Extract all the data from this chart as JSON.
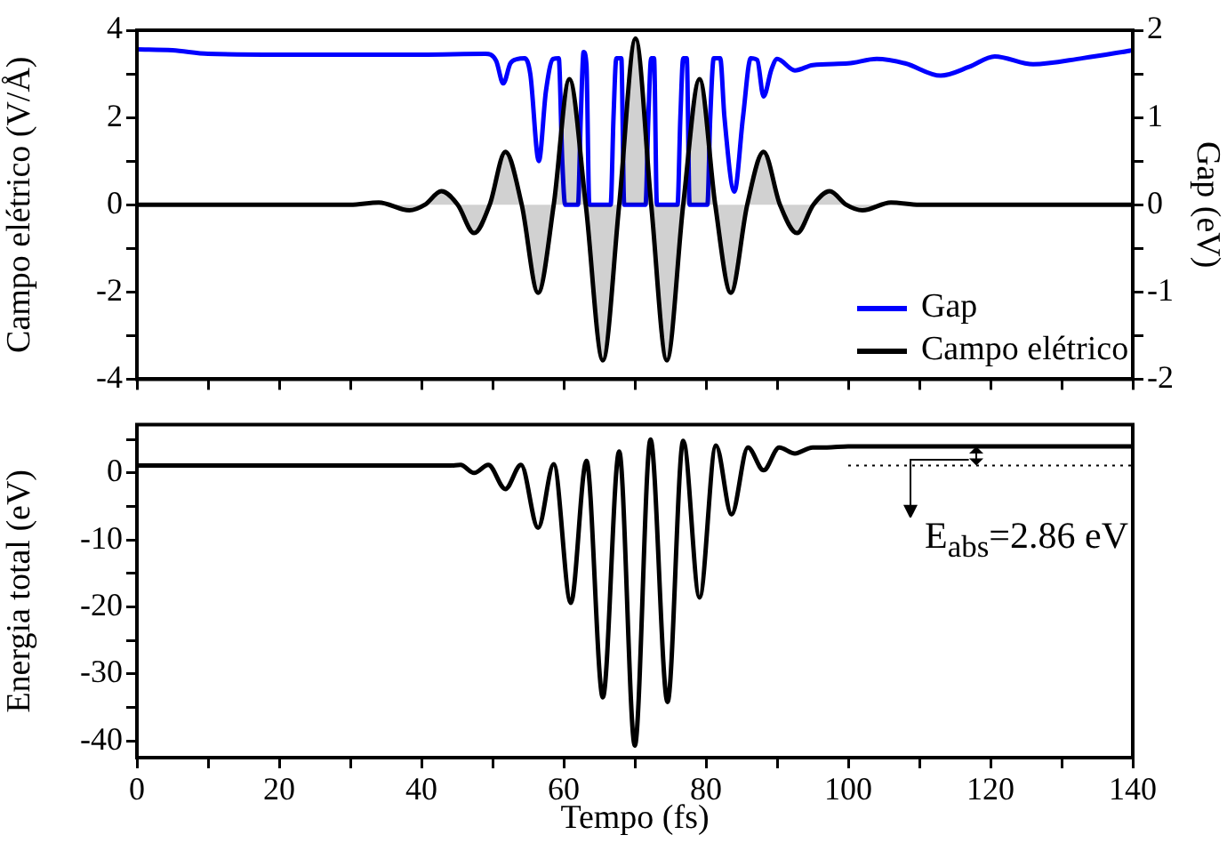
{
  "chart_data": [
    {
      "type": "line",
      "xlim": [
        0,
        140
      ],
      "xticks": [
        0,
        10,
        20,
        30,
        40,
        50,
        60,
        70,
        80,
        90,
        100,
        110,
        120,
        130,
        140
      ],
      "ylim": [
        -4,
        4
      ],
      "yticks": [
        -4,
        {
          "value": -3,
          "label": null
        },
        -2,
        {
          "value": -1,
          "label": null
        },
        0,
        {
          "value": 1,
          "label": null
        },
        2,
        {
          "value": 3,
          "label": null
        },
        4
      ],
      "y2lim": [
        -2,
        2
      ],
      "y2ticks": [
        -2,
        {
          "value": -1.5,
          "label": null
        },
        -1,
        {
          "value": -0.5,
          "label": null
        },
        0,
        {
          "value": 0.5,
          "label": null
        },
        1,
        {
          "value": 1.5,
          "label": null
        },
        2
      ],
      "ylabel": "Campo elétrico (V/Å)",
      "y2label": "Gap (eV)",
      "tick_labels": "y",
      "legend": "bottom right",
      "marker": "none",
      "series": [
        {
          "name": "Gap",
          "color": "#0000ff",
          "axis": "y2",
          "x": [
            0,
            5,
            10,
            20,
            30,
            40,
            49,
            50.5,
            51.5,
            52.5,
            53.5,
            54.5,
            55.3,
            56.5,
            57.5,
            58.5,
            59.3,
            59.8,
            60.2,
            62,
            62.4,
            62.8,
            63.2,
            63.6,
            66.6,
            67,
            67.4,
            68.1,
            68.5,
            71.5,
            71.9,
            72.3,
            72.7,
            73.1,
            76,
            76.4,
            76.8,
            77.3,
            77.7,
            80.2,
            80.6,
            81.1,
            82,
            82.6,
            84,
            85.2,
            86.3,
            87.2,
            88.1,
            89.2,
            90,
            92.5,
            95,
            100,
            104,
            108,
            113,
            117,
            120.6,
            126,
            133,
            140
          ],
          "values": [
            1.78,
            1.77,
            1.73,
            1.72,
            1.72,
            1.72,
            1.73,
            1.65,
            1.39,
            1.62,
            1.67,
            1.68,
            1.5,
            0.5,
            1.3,
            1.67,
            1.68,
            0.5,
            0,
            0,
            1,
            1.75,
            1.6,
            0,
            0,
            1,
            1.68,
            1.68,
            0,
            0,
            1,
            1.68,
            1.68,
            0,
            0,
            1,
            1.68,
            1.68,
            0,
            0,
            1,
            1.68,
            1.68,
            1,
            0.15,
            1,
            1.68,
            1.66,
            1.24,
            1.55,
            1.67,
            1.54,
            1.6,
            1.62,
            1.67,
            1.62,
            1.48,
            1.58,
            1.7,
            1.61,
            1.68,
            1.77
          ]
        },
        {
          "name": "Campo elétrico",
          "type": "area",
          "color": "#000000",
          "x": [
            0,
            30,
            34,
            38.3,
            40.5,
            42.8,
            45.1,
            47.4,
            49.6,
            51.8,
            54.1,
            56.4,
            58.6,
            60.8,
            63.1,
            65.5,
            67.8,
            70.1,
            72.3,
            74.5,
            76.8,
            79.1,
            81.3,
            83.5,
            85.8,
            88.1,
            90.4,
            92.8,
            95.1,
            97.4,
            99.7,
            102,
            106,
            110,
            140
          ],
          "values": [
            0,
            0,
            0.05,
            -0.13,
            0,
            0.31,
            0,
            -0.65,
            0,
            1.21,
            0,
            -2.02,
            0,
            2.88,
            0,
            -3.57,
            0,
            3.81,
            0,
            -3.57,
            0,
            2.88,
            0,
            -2.02,
            0,
            1.21,
            0,
            -0.65,
            0,
            0.31,
            0,
            -0.13,
            0.05,
            0,
            0
          ]
        }
      ]
    },
    {
      "type": "line",
      "xlim": [
        0,
        140
      ],
      "xticks": [
        0,
        {
          "value": 10,
          "label": null
        },
        20,
        {
          "value": 30,
          "label": null
        },
        40,
        {
          "value": 50,
          "label": null
        },
        60,
        {
          "value": 70,
          "label": null
        },
        80,
        {
          "value": 90,
          "label": null
        },
        100,
        {
          "value": 110,
          "label": null
        },
        120,
        {
          "value": 130,
          "label": null
        },
        140
      ],
      "ylim": [
        -42.5,
        7.2
      ],
      "yticks": [
        -40,
        {
          "value": -35,
          "label": null
        },
        -30,
        {
          "value": -25,
          "label": null
        },
        -20,
        {
          "value": -15,
          "label": null
        },
        -10,
        {
          "value": -5,
          "label": null
        },
        0,
        {
          "value": 5,
          "label": null
        }
      ],
      "xlabel": "Tempo (fs)",
      "ylabel": "Energia total (eV)",
      "marker": "none",
      "annotations": [
        {
          "text": "E$_{abs}$=2.86 eV",
          "x": 118,
          "y": 2.5
        }
      ],
      "series": [
        {
          "color": "#000000",
          "x": [
            0,
            40,
            44,
            45.5,
            47.4,
            49.4,
            51.8,
            54,
            56.4,
            58.6,
            61,
            63.2,
            65.5,
            67.8,
            70,
            72.2,
            74.6,
            76.8,
            79.1,
            81.4,
            83.6,
            85.9,
            88.1,
            90.3,
            92.5,
            95,
            97,
            100,
            140
          ],
          "values": [
            1.1,
            1.1,
            1.1,
            1.2,
            0,
            1.2,
            -2.4,
            1.2,
            -8.2,
            1.3,
            -19.4,
            1.8,
            -33.5,
            3.2,
            -40.7,
            5,
            -34.2,
            4.8,
            -18.6,
            4.1,
            -6.2,
            3.8,
            0.4,
            3.8,
            2.9,
            3.8,
            3.8,
            3.96,
            3.96
          ]
        },
        {
          "color": "#000000",
          "line_style": "dotted",
          "x": [
            100,
            140
          ],
          "values": [
            1.1,
            1.1
          ]
        }
      ]
    }
  ]
}
